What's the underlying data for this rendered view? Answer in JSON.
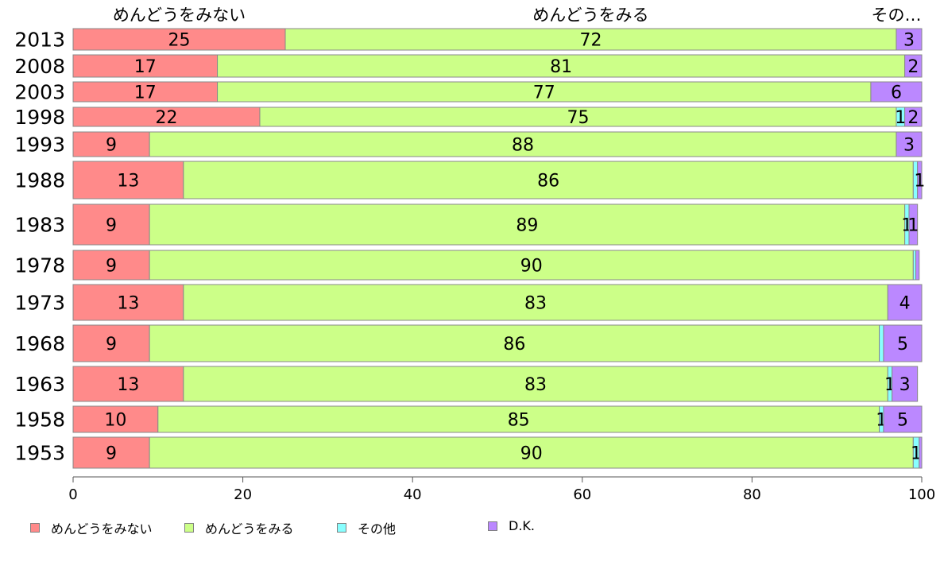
{
  "chart_data": {
    "type": "bar",
    "orientation": "horizontal",
    "stacked": true,
    "categories": [
      "2013",
      "2008",
      "2003",
      "1998",
      "1993",
      "1988",
      "1983",
      "1978",
      "1973",
      "1968",
      "1963",
      "1958",
      "1953"
    ],
    "series": [
      {
        "name": "めんどうをみない",
        "color": "#ff8a8a",
        "values": [
          25,
          17,
          17,
          22,
          9,
          13,
          9,
          9,
          13,
          9,
          13,
          10,
          9
        ],
        "labels": [
          "25",
          "17",
          "17",
          "22",
          "9",
          "13",
          "9",
          "9",
          "13",
          "9",
          "13",
          "10",
          "9"
        ]
      },
      {
        "name": "めんどうをみる",
        "color": "#ccff88",
        "values": [
          72,
          81,
          77,
          75,
          88,
          86,
          89,
          90,
          83,
          86,
          83,
          85,
          90
        ],
        "labels": [
          "72",
          "81",
          "77",
          "75",
          "88",
          "86",
          "89",
          "90",
          "83",
          "86",
          "83",
          "85",
          "90"
        ]
      },
      {
        "name": "その他",
        "color": "#88ffff",
        "values": [
          0,
          0,
          0,
          1,
          0,
          0.5,
          0.5,
          0.3,
          0,
          0.5,
          0.5,
          0.5,
          0.7
        ],
        "labels": [
          "",
          "",
          "",
          "1",
          "",
          "",
          "1",
          "",
          "",
          "",
          "1",
          "1",
          "1"
        ]
      },
      {
        "name": "D.K.",
        "color": "#bb88ff",
        "values": [
          3,
          2,
          6,
          2,
          3,
          1,
          1,
          0.4,
          4,
          5,
          3,
          5,
          0.3
        ],
        "labels": [
          "3",
          "2",
          "6",
          "2",
          "3",
          "1",
          "1",
          "",
          "4",
          "5",
          "3",
          "5",
          ""
        ]
      }
    ],
    "top_labels": [
      "めんどうをみない",
      "めんどうをみる",
      "その…"
    ],
    "x_ticks": [
      0,
      20,
      40,
      60,
      80,
      100
    ],
    "xlim": [
      0,
      100
    ],
    "xlabel": "",
    "ylabel": "",
    "title": "",
    "legend_position": "bottom-left",
    "legend": [
      "めんどうをみない",
      "めんどうをみる",
      "その他",
      "D.K."
    ]
  }
}
